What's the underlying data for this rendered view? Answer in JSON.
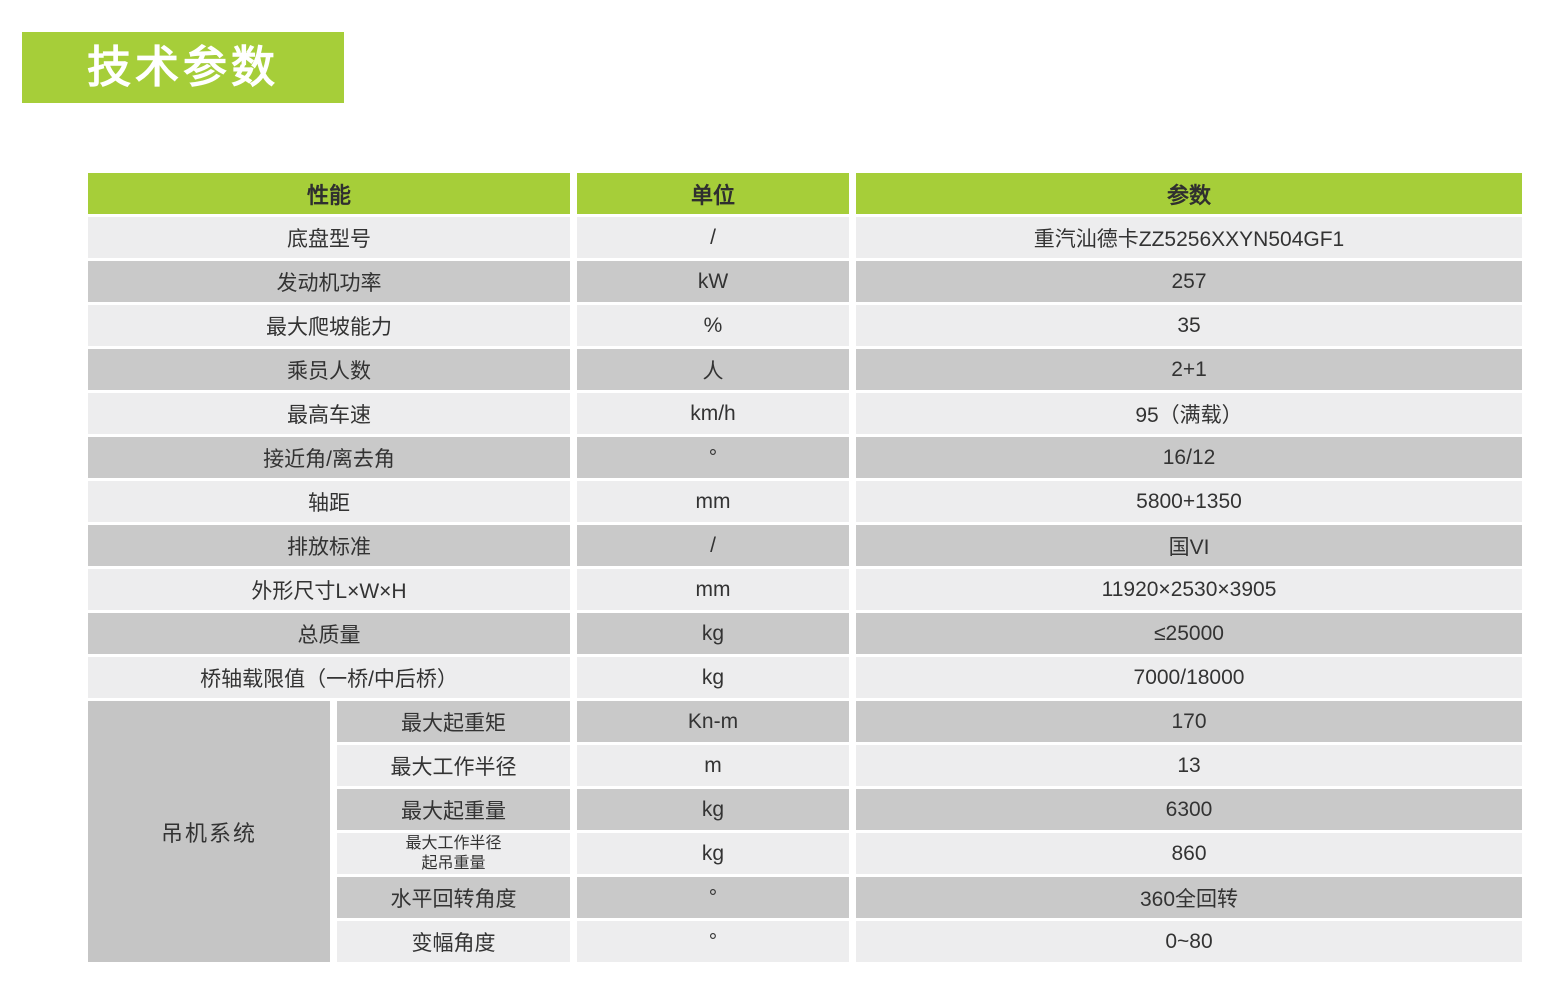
{
  "page": {
    "title": "技术参数"
  },
  "colors": {
    "accent_green": "#a6ce39",
    "row_light": "#ededee",
    "row_dark": "#c9c9c9",
    "group_cell_gray": "#c5c5c5",
    "text": "#333333",
    "title_text": "#ffffff"
  },
  "table": {
    "headers": {
      "property": "性能",
      "unit": "单位",
      "value": "参数"
    },
    "rows": [
      {
        "property": "底盘型号",
        "unit": "/",
        "value": "重汽汕德卡ZZ5256XXYN504GF1"
      },
      {
        "property": "发动机功率",
        "unit": "kW",
        "value": "257"
      },
      {
        "property": "最大爬坡能力",
        "unit": "%",
        "value": "35"
      },
      {
        "property": "乘员人数",
        "unit": "人",
        "value": "2+1"
      },
      {
        "property": "最高车速",
        "unit": "km/h",
        "value": "95（满载）"
      },
      {
        "property": "接近角/离去角",
        "unit": "°",
        "value": "16/12"
      },
      {
        "property": "轴距",
        "unit": "mm",
        "value": "5800+1350"
      },
      {
        "property": "排放标准",
        "unit": "/",
        "value": "国VI"
      },
      {
        "property": "外形尺寸L×W×H",
        "unit": "mm",
        "value": "11920×2530×3905"
      },
      {
        "property": "总质量",
        "unit": "kg",
        "value": "≤25000"
      },
      {
        "property": "桥轴载限值（一桥/中后桥）",
        "unit": "kg",
        "value": "7000/18000"
      }
    ],
    "crane_group": {
      "label": "吊机系统",
      "rows": [
        {
          "property": "最大起重矩",
          "unit": "Kn-m",
          "value": "170"
        },
        {
          "property": "最大工作半径",
          "unit": "m",
          "value": "13"
        },
        {
          "property": "最大起重量",
          "unit": "kg",
          "value": "6300"
        },
        {
          "property_line1": "最大工作半径",
          "property_line2": "起吊重量",
          "unit": "kg",
          "value": "860"
        },
        {
          "property": "水平回转角度",
          "unit": "°",
          "value": "360全回转"
        },
        {
          "property": "变幅角度",
          "unit": "°",
          "value": "0~80"
        }
      ]
    }
  }
}
